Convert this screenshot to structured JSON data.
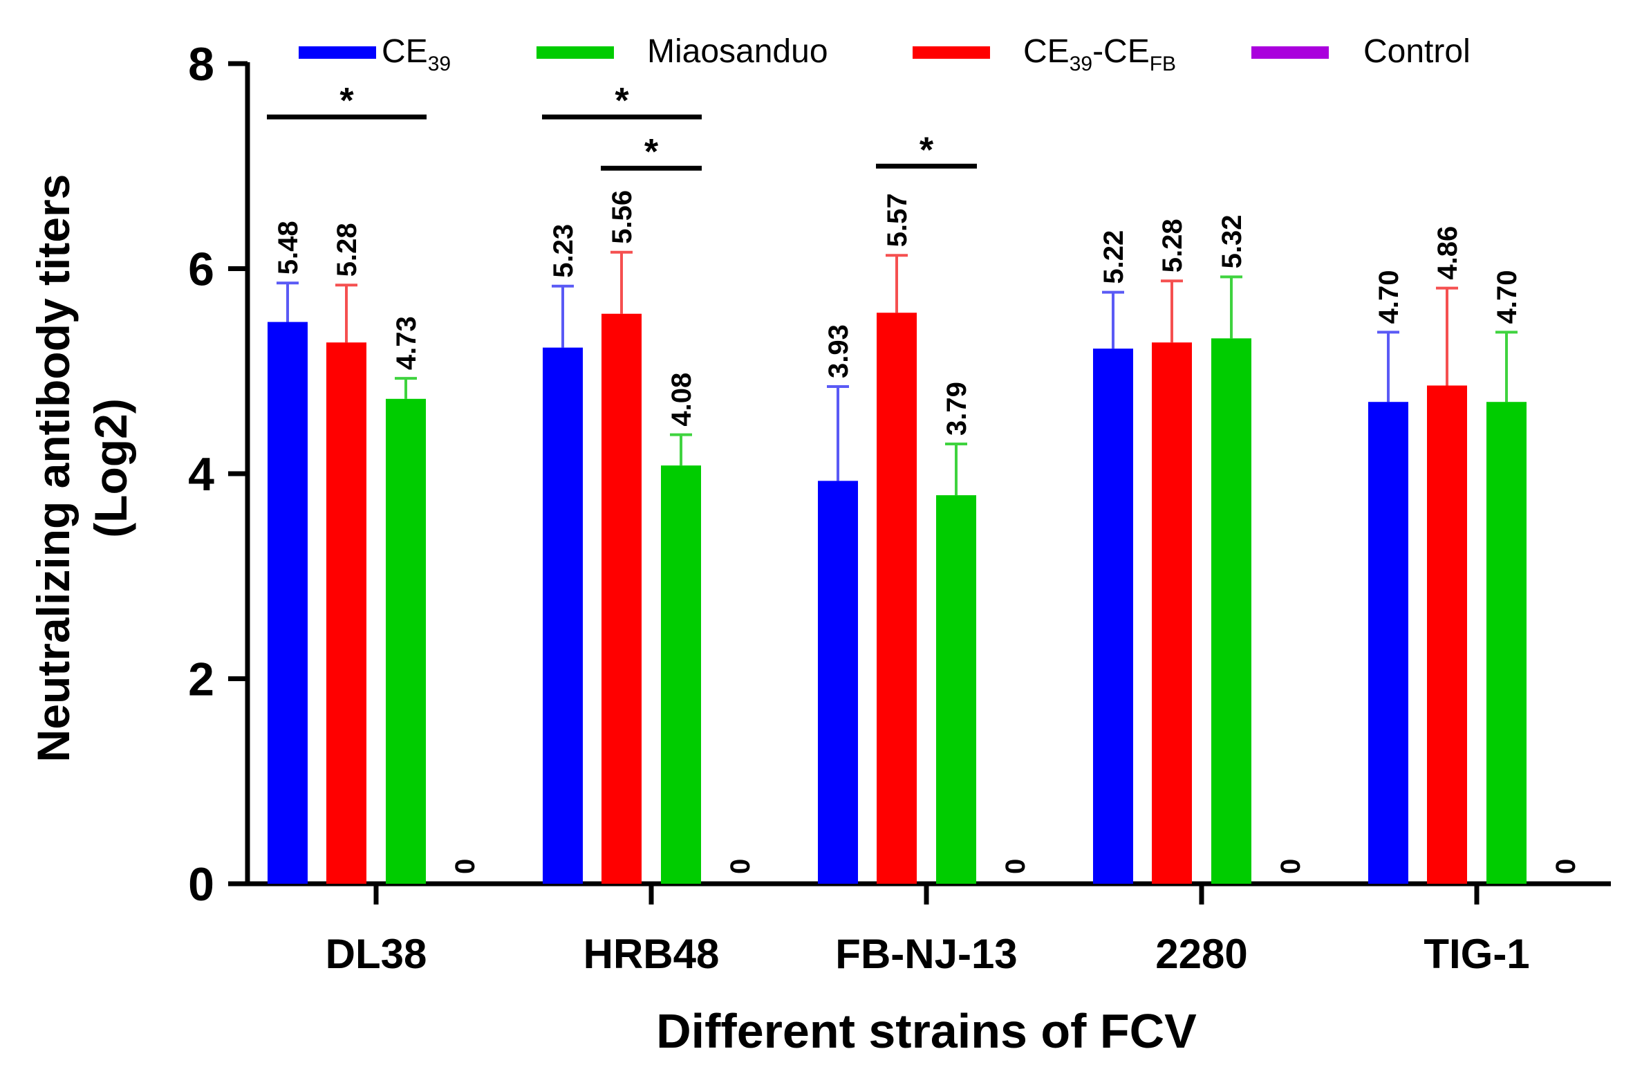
{
  "chart_data": {
    "type": "bar",
    "xlabel": "Different strains of FCV",
    "ylabel_line1": "Neutralizing antibody titers",
    "ylabel_line2": "(Log2)",
    "ylim": [
      0,
      8
    ],
    "yticks": [
      0,
      2,
      4,
      6,
      8
    ],
    "grid": false,
    "legend_position": "top",
    "categories": [
      "DL38",
      "HRB48",
      "FB-NJ-13",
      "2280",
      "TIG-1"
    ],
    "series": [
      {
        "name": "CE",
        "name_sub": "39",
        "color": "#0000ff",
        "error_color": "#5a5af5",
        "values": [
          5.48,
          5.23,
          3.93,
          5.22,
          4.7
        ],
        "errors": [
          0.38,
          0.6,
          0.92,
          0.55,
          0.68
        ],
        "labels": [
          "5.48",
          "5.23",
          "3.93",
          "5.22",
          "4.70"
        ]
      },
      {
        "name": "Miaosanduo",
        "color": "#00cc00",
        "error_color": "#3fd33f",
        "values": [
          4.73,
          4.08,
          3.79,
          5.32,
          4.7
        ],
        "errors": [
          0.2,
          0.3,
          0.5,
          0.6,
          0.68
        ],
        "labels": [
          "4.73",
          "4.08",
          "3.79",
          "5.32",
          "4.70"
        ]
      },
      {
        "name": "CE",
        "name_sub": "39",
        "name_suffix": "-CE",
        "name_suffix_sub": "FB",
        "color": "#ff0000",
        "error_color": "#f55050",
        "values": [
          5.28,
          5.56,
          5.57,
          5.28,
          4.86
        ],
        "errors": [
          0.56,
          0.6,
          0.56,
          0.6,
          0.95
        ],
        "labels": [
          "5.28",
          "5.56",
          "5.57",
          "5.28",
          "4.86"
        ]
      },
      {
        "name": "Control",
        "color": "#aa00dd",
        "values": [
          0,
          0,
          0,
          0,
          0
        ],
        "labels": [
          "0",
          "0",
          "0",
          "0",
          "0"
        ]
      }
    ],
    "significance": [
      {
        "label": "*",
        "category": "DL38",
        "from": "CE39",
        "to": "Miaosanduo",
        "y": 7.48
      },
      {
        "label": "*",
        "category": "HRB48",
        "from": "CE39",
        "to": "Miaosanduo",
        "y": 7.48
      },
      {
        "label": "*",
        "category": "HRB48",
        "from": "CE39-CEFB",
        "to": "Miaosanduo",
        "y": 6.98
      },
      {
        "label": "*",
        "category": "FB-NJ-13",
        "from": "CE39-CEFB",
        "to": "Miaosanduo",
        "y": 7.0
      }
    ]
  }
}
